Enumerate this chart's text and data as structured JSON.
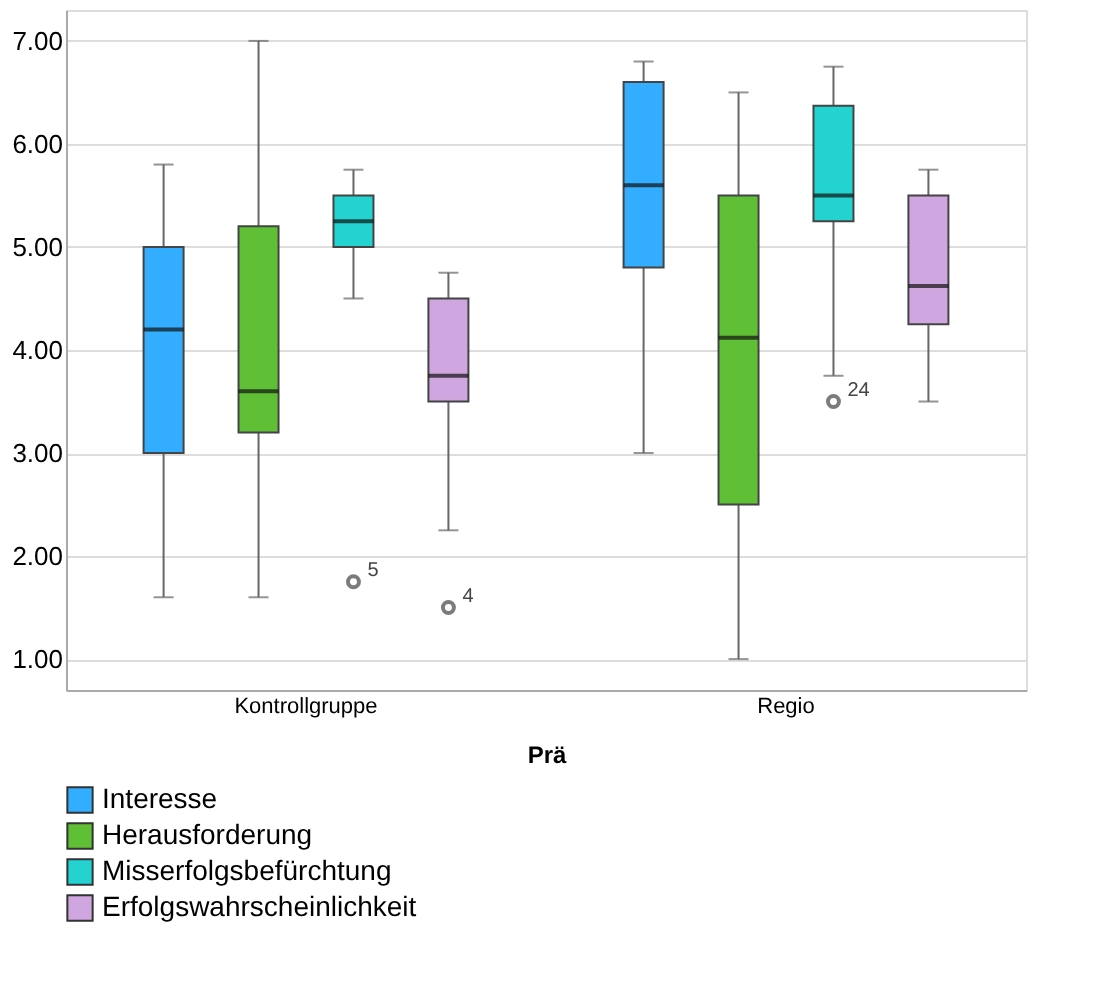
{
  "chart_data": {
    "type": "box",
    "xlabel": "Prä",
    "categories": [
      "Kontrollgruppe",
      "Regio"
    ],
    "series": [
      {
        "name": "Interesse",
        "color": "#33adff",
        "boxes": [
          {
            "low": 1.6,
            "q1": 3.0,
            "median": 4.2,
            "q3": 5.0,
            "high": 5.8
          },
          {
            "low": 3.0,
            "q1": 4.8,
            "median": 5.6,
            "q3": 6.6,
            "high": 6.8
          }
        ]
      },
      {
        "name": "Herausforderung",
        "color": "#5fbf35",
        "boxes": [
          {
            "low": 1.6,
            "q1": 3.2,
            "median": 3.6,
            "q3": 5.2,
            "high": 7.0
          },
          {
            "low": 1.0,
            "q1": 2.5,
            "median": 4.12,
            "q3": 5.5,
            "high": 6.5
          }
        ]
      },
      {
        "name": "Misserfolgsbefürchtung",
        "color": "#22d3d0",
        "boxes": [
          {
            "low": 4.5,
            "q1": 5.0,
            "median": 5.25,
            "q3": 5.5,
            "high": 5.75,
            "outliers": [
              1.75
            ]
          },
          {
            "low": 3.75,
            "q1": 5.25,
            "median": 5.5,
            "q3": 6.37,
            "high": 6.75,
            "outliers": [
              3.5
            ]
          }
        ]
      },
      {
        "name": "Erfolgswahrscheinlichkeit",
        "color": "#cfa6e0",
        "boxes": [
          {
            "low": 2.25,
            "q1": 3.5,
            "median": 3.75,
            "q3": 4.5,
            "high": 4.75,
            "outliers": [
              1.5
            ]
          },
          {
            "low": 3.5,
            "q1": 4.25,
            "median": 4.62,
            "q3": 5.5,
            "high": 5.75
          }
        ]
      }
    ],
    "annotations": [
      "5",
      "24",
      "4"
    ],
    "ylim": [
      0.7,
      7.3
    ],
    "yticks": [
      {
        "value": 1,
        "label": "1.00"
      },
      {
        "value": 2,
        "label": "2.00"
      },
      {
        "value": 3,
        "label": "3.00"
      },
      {
        "value": 4,
        "label": "4.00"
      },
      {
        "value": 5,
        "label": "5.00"
      },
      {
        "value": 6,
        "label": "6.00"
      },
      {
        "value": 7,
        "label": "7.00"
      }
    ],
    "grid": "y",
    "legend": "bottom left"
  }
}
